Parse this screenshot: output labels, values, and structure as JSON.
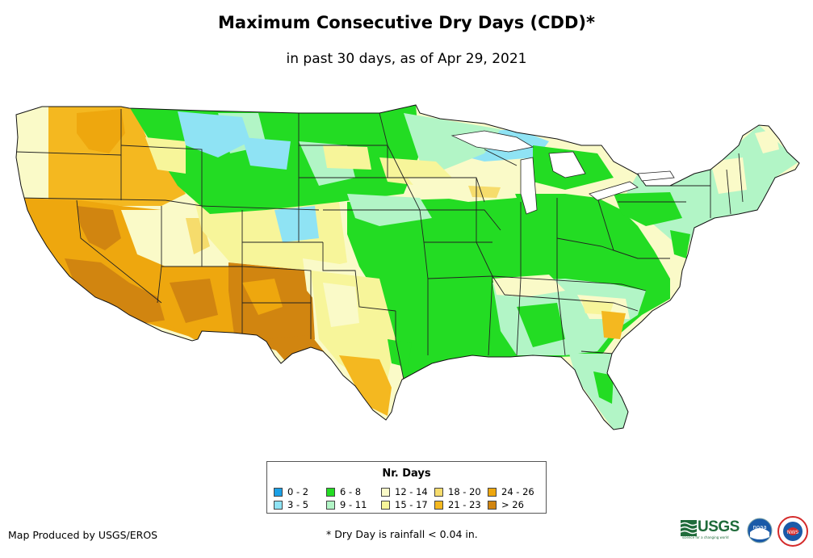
{
  "title": "Maximum Consecutive Dry Days (CDD)*",
  "subtitle": "in past 30 days, as of Apr 29, 2021",
  "legend": {
    "title": "Nr. Days",
    "items": [
      {
        "label": "0 - 2",
        "color": "#1aa0e6"
      },
      {
        "label": "3 - 5",
        "color": "#8fe3f4"
      },
      {
        "label": "6 - 8",
        "color": "#23dc23"
      },
      {
        "label": "9 - 11",
        "color": "#b2f5c6"
      },
      {
        "label": "12 - 14",
        "color": "#fafac8"
      },
      {
        "label": "15 - 17",
        "color": "#f7f59a"
      },
      {
        "label": "18 - 20",
        "color": "#f6dc6c"
      },
      {
        "label": "21 - 23",
        "color": "#f4b820"
      },
      {
        "label": "24 - 26",
        "color": "#eea70e"
      },
      {
        "label": "> 26",
        "color": "#d18510"
      }
    ]
  },
  "footer": {
    "credit": "Map Produced by USGS/EROS",
    "note": "* Dry Day is rainfall < 0.04 in."
  },
  "logos": {
    "usgs": "USGS",
    "usgs_tagline": "science for a changing world",
    "noaa": "noaa",
    "nws": "NWS"
  },
  "colors": {
    "border": "#222222",
    "usgs_green": "#1f6b3a",
    "noaa_blue": "#1a5aa8",
    "nws_red": "#d42a2a"
  },
  "map": {
    "regions": [
      {
        "name": "pacific-northwest-coast",
        "cls": "15-17"
      },
      {
        "name": "oregon-idaho-interior",
        "cls": "21-23"
      },
      {
        "name": "montana-west",
        "cls": "24-26"
      },
      {
        "name": "california-nevada",
        "cls": "24-26"
      },
      {
        "name": "great-basin-core",
        "cls": "> 26"
      },
      {
        "name": "colorado-plateau",
        "cls": "12-14"
      },
      {
        "name": "southwest-desert",
        "cls": "24-26"
      },
      {
        "name": "new-mexico-west-texas",
        "cls": "> 26"
      },
      {
        "name": "high-plains-yellow",
        "cls": "15-17"
      },
      {
        "name": "northern-plains-green",
        "cls": "6-8"
      },
      {
        "name": "montana-cyan",
        "cls": "3-5"
      },
      {
        "name": "nebraska-cyan",
        "cls": "3-5"
      },
      {
        "name": "kansas-cyan",
        "cls": "3-5"
      },
      {
        "name": "mississippi-ohio-valley",
        "cls": "6-8"
      },
      {
        "name": "great-lakes-cyan",
        "cls": "3-5"
      },
      {
        "name": "upper-midwest-light",
        "cls": "9-11"
      },
      {
        "name": "minnesota-iowa-yellow",
        "cls": "15-17"
      },
      {
        "name": "northeast-light",
        "cls": "9-11"
      },
      {
        "name": "new-england-yellow",
        "cls": "12-14"
      },
      {
        "name": "southeast-light",
        "cls": "9-11"
      },
      {
        "name": "carolinas-yellow",
        "cls": "15-17"
      },
      {
        "name": "georgia-orange",
        "cls": "21-23"
      },
      {
        "name": "florida",
        "cls": "9-11"
      },
      {
        "name": "texas-central-yellow",
        "cls": "15-17"
      },
      {
        "name": "texas-south-orange",
        "cls": "21-23"
      }
    ]
  }
}
